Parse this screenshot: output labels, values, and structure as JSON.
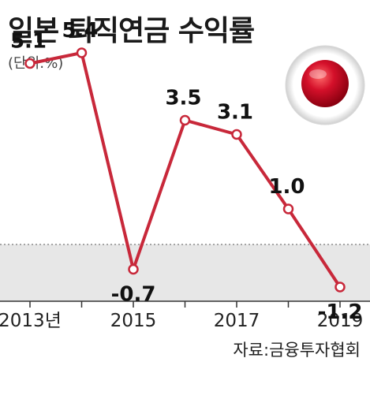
{
  "title": "일본 퇴직연금 수익률",
  "unit_label": "(단위:%)",
  "source": "자료:금융투자협회",
  "colors": {
    "line": "#c8283a",
    "marker_fill": "#ffffff",
    "negative_band": "#e7e7e7",
    "flag_red": "#d4102a"
  },
  "chart_data": {
    "type": "line",
    "x": [
      2013,
      2014,
      2015,
      2016,
      2017,
      2018,
      2019
    ],
    "values": [
      5.1,
      5.4,
      -0.7,
      3.5,
      3.1,
      1.0,
      -1.2
    ],
    "value_labels": [
      "5.1",
      "5.4",
      "-0.7",
      "3.5",
      "3.1",
      "1.0",
      "-1.2"
    ],
    "tick_labels": [
      "2013년",
      "2015",
      "2017",
      "2019"
    ],
    "tick_years": [
      2013,
      2015,
      2017,
      2019
    ],
    "ylim": [
      -2.0,
      6.0
    ],
    "xlim": [
      2013,
      2019
    ],
    "zero_reference_line": "dotted",
    "negative_region_shaded": true,
    "grid": false,
    "legend": "none"
  },
  "flag_icon": "japan-flag-icon"
}
